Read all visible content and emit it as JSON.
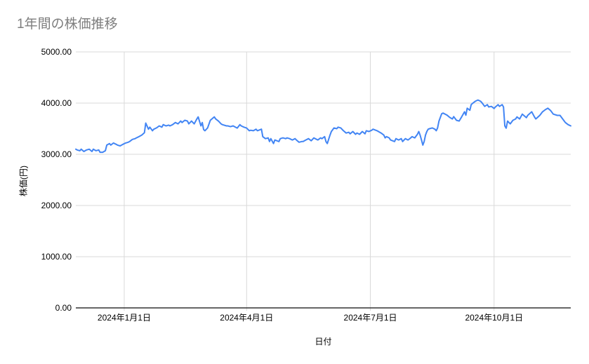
{
  "chart_data": {
    "type": "line",
    "title": "1年間の株価推移",
    "xlabel": "日付",
    "ylabel": "株価(円)",
    "series_name": "株価",
    "ylim": [
      0,
      5000
    ],
    "xlim_days": [
      0,
      368
    ],
    "grid": true,
    "legend_position": "none",
    "line_color": "#4285f4",
    "y_ticks": [
      {
        "label": "5000.00",
        "value": 5000
      },
      {
        "label": "4000.00",
        "value": 4000
      },
      {
        "label": "3000.00",
        "value": 3000
      },
      {
        "label": "2000.00",
        "value": 2000
      },
      {
        "label": "1000.00",
        "value": 1000
      },
      {
        "label": "0.00",
        "value": 0
      }
    ],
    "x_ticks": [
      {
        "label": "2024年1月1日",
        "day": 36
      },
      {
        "label": "2024年4月1日",
        "day": 127
      },
      {
        "label": "2024年7月1日",
        "day": 219
      },
      {
        "label": "2024年10月1日",
        "day": 311
      }
    ],
    "series": [
      {
        "name": "株価",
        "points": [
          [
            0,
            3100
          ],
          [
            1,
            3085
          ],
          [
            3,
            3070
          ],
          [
            4,
            3100
          ],
          [
            6,
            3055
          ],
          [
            8,
            3085
          ],
          [
            10,
            3100
          ],
          [
            12,
            3055
          ],
          [
            13,
            3100
          ],
          [
            15,
            3070
          ],
          [
            17,
            3085
          ],
          [
            18,
            3040
          ],
          [
            20,
            3040
          ],
          [
            22,
            3070
          ],
          [
            23,
            3180
          ],
          [
            25,
            3210
          ],
          [
            26,
            3180
          ],
          [
            28,
            3220
          ],
          [
            30,
            3195
          ],
          [
            31,
            3180
          ],
          [
            33,
            3165
          ],
          [
            35,
            3195
          ],
          [
            37,
            3220
          ],
          [
            39,
            3235
          ],
          [
            40,
            3250
          ],
          [
            42,
            3290
          ],
          [
            44,
            3305
          ],
          [
            45,
            3320
          ],
          [
            47,
            3345
          ],
          [
            49,
            3375
          ],
          [
            51,
            3420
          ],
          [
            52,
            3610
          ],
          [
            54,
            3490
          ],
          [
            55,
            3530
          ],
          [
            57,
            3460
          ],
          [
            58,
            3490
          ],
          [
            60,
            3515
          ],
          [
            62,
            3555
          ],
          [
            64,
            3530
          ],
          [
            65,
            3580
          ],
          [
            67,
            3555
          ],
          [
            69,
            3570
          ],
          [
            70,
            3555
          ],
          [
            72,
            3580
          ],
          [
            74,
            3620
          ],
          [
            76,
            3595
          ],
          [
            78,
            3650
          ],
          [
            79,
            3620
          ],
          [
            81,
            3665
          ],
          [
            83,
            3650
          ],
          [
            84,
            3595
          ],
          [
            86,
            3650
          ],
          [
            88,
            3595
          ],
          [
            90,
            3690
          ],
          [
            91,
            3730
          ],
          [
            93,
            3555
          ],
          [
            94,
            3620
          ],
          [
            95,
            3485
          ],
          [
            96,
            3460
          ],
          [
            98,
            3515
          ],
          [
            100,
            3665
          ],
          [
            102,
            3710
          ],
          [
            103,
            3730
          ],
          [
            104,
            3690
          ],
          [
            106,
            3650
          ],
          [
            108,
            3595
          ],
          [
            109,
            3580
          ],
          [
            112,
            3555
          ],
          [
            113,
            3555
          ],
          [
            115,
            3540
          ],
          [
            117,
            3555
          ],
          [
            118,
            3540
          ],
          [
            120,
            3512
          ],
          [
            122,
            3580
          ],
          [
            123,
            3555
          ],
          [
            125,
            3530
          ],
          [
            127,
            3512
          ],
          [
            129,
            3460
          ],
          [
            130,
            3470
          ],
          [
            132,
            3460
          ],
          [
            134,
            3490
          ],
          [
            135,
            3460
          ],
          [
            138,
            3490
          ],
          [
            139,
            3345
          ],
          [
            141,
            3305
          ],
          [
            143,
            3320
          ],
          [
            144,
            3250
          ],
          [
            145,
            3305
          ],
          [
            147,
            3210
          ],
          [
            148,
            3280
          ],
          [
            151,
            3250
          ],
          [
            152,
            3305
          ],
          [
            154,
            3320
          ],
          [
            156,
            3305
          ],
          [
            157,
            3320
          ],
          [
            159,
            3305
          ],
          [
            161,
            3280
          ],
          [
            163,
            3305
          ],
          [
            164,
            3280
          ],
          [
            166,
            3235
          ],
          [
            168,
            3250
          ],
          [
            169,
            3250
          ],
          [
            171,
            3280
          ],
          [
            173,
            3305
          ],
          [
            175,
            3265
          ],
          [
            177,
            3320
          ],
          [
            178,
            3305
          ],
          [
            180,
            3280
          ],
          [
            182,
            3320
          ],
          [
            183,
            3305
          ],
          [
            185,
            3345
          ],
          [
            186,
            3250
          ],
          [
            187,
            3210
          ],
          [
            189,
            3375
          ],
          [
            190,
            3445
          ],
          [
            192,
            3515
          ],
          [
            194,
            3500
          ],
          [
            195,
            3530
          ],
          [
            197,
            3515
          ],
          [
            199,
            3460
          ],
          [
            201,
            3415
          ],
          [
            203,
            3430
          ],
          [
            204,
            3400
          ],
          [
            206,
            3445
          ],
          [
            208,
            3390
          ],
          [
            209,
            3415
          ],
          [
            211,
            3390
          ],
          [
            213,
            3445
          ],
          [
            215,
            3400
          ],
          [
            216,
            3460
          ],
          [
            218,
            3445
          ],
          [
            220,
            3470
          ],
          [
            221,
            3490
          ],
          [
            224,
            3460
          ],
          [
            225,
            3445
          ],
          [
            227,
            3415
          ],
          [
            229,
            3375
          ],
          [
            230,
            3320
          ],
          [
            231,
            3345
          ],
          [
            233,
            3320
          ],
          [
            234,
            3280
          ],
          [
            237,
            3250
          ],
          [
            238,
            3305
          ],
          [
            240,
            3280
          ],
          [
            242,
            3305
          ],
          [
            243,
            3250
          ],
          [
            245,
            3305
          ],
          [
            247,
            3280
          ],
          [
            249,
            3320
          ],
          [
            250,
            3345
          ],
          [
            252,
            3320
          ],
          [
            254,
            3390
          ],
          [
            255,
            3445
          ],
          [
            256,
            3375
          ],
          [
            257,
            3280
          ],
          [
            258,
            3180
          ],
          [
            259,
            3250
          ],
          [
            260,
            3375
          ],
          [
            261,
            3445
          ],
          [
            262,
            3490
          ],
          [
            263,
            3500
          ],
          [
            265,
            3515
          ],
          [
            267,
            3490
          ],
          [
            268,
            3460
          ],
          [
            269,
            3515
          ],
          [
            270,
            3650
          ],
          [
            272,
            3790
          ],
          [
            273,
            3805
          ],
          [
            276,
            3765
          ],
          [
            278,
            3720
          ],
          [
            280,
            3690
          ],
          [
            281,
            3735
          ],
          [
            283,
            3665
          ],
          [
            285,
            3650
          ],
          [
            287,
            3735
          ],
          [
            289,
            3830
          ],
          [
            290,
            3765
          ],
          [
            291,
            3900
          ],
          [
            293,
            3860
          ],
          [
            294,
            3970
          ],
          [
            295,
            3995
          ],
          [
            297,
            4035
          ],
          [
            299,
            4060
          ],
          [
            301,
            4035
          ],
          [
            302,
            4005
          ],
          [
            304,
            3935
          ],
          [
            306,
            3970
          ],
          [
            307,
            3925
          ],
          [
            309,
            3935
          ],
          [
            311,
            3895
          ],
          [
            312,
            3925
          ],
          [
            314,
            3970
          ],
          [
            315,
            3935
          ],
          [
            317,
            3970
          ],
          [
            318,
            3925
          ],
          [
            319,
            3555
          ],
          [
            320,
            3510
          ],
          [
            321,
            3650
          ],
          [
            323,
            3595
          ],
          [
            325,
            3665
          ],
          [
            327,
            3690
          ],
          [
            328,
            3730
          ],
          [
            330,
            3690
          ],
          [
            332,
            3785
          ],
          [
            335,
            3715
          ],
          [
            336,
            3760
          ],
          [
            339,
            3830
          ],
          [
            341,
            3730
          ],
          [
            342,
            3690
          ],
          [
            345,
            3760
          ],
          [
            347,
            3830
          ],
          [
            349,
            3870
          ],
          [
            351,
            3900
          ],
          [
            353,
            3855
          ],
          [
            355,
            3785
          ],
          [
            358,
            3760
          ],
          [
            360,
            3760
          ],
          [
            362,
            3690
          ],
          [
            364,
            3620
          ],
          [
            366,
            3580
          ],
          [
            368,
            3555
          ]
        ]
      }
    ]
  }
}
